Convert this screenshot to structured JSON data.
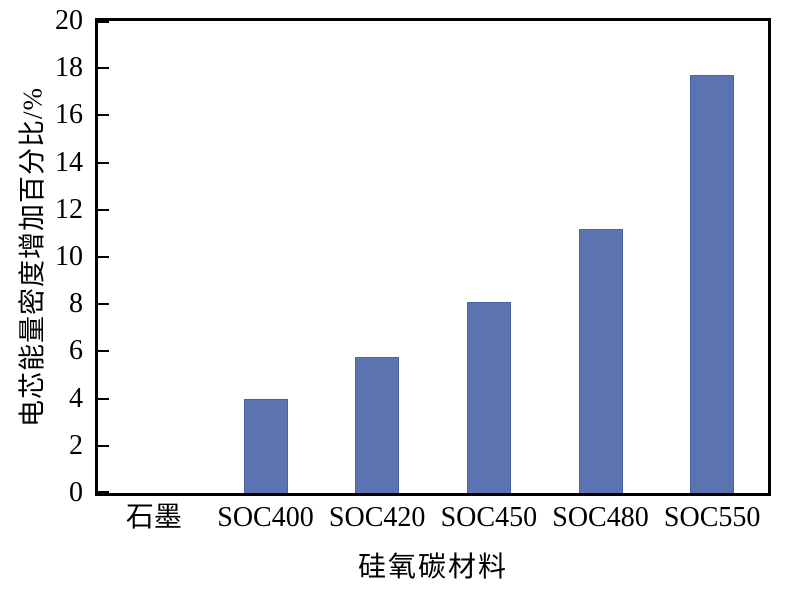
{
  "chart_data": {
    "type": "bar",
    "title": "",
    "categories": [
      "石墨",
      "SOC400",
      "SOC420",
      "SOC450",
      "SOC480",
      "SOC550"
    ],
    "values": [
      0,
      4.0,
      5.75,
      8.1,
      11.2,
      17.7
    ],
    "xlabel": "硅氧碳材料",
    "ylabel": "电芯能量密度增加百分比/%",
    "ylim": [
      0,
      20
    ],
    "ytick_step": 2,
    "ytick_labels": [
      "0",
      "2",
      "4",
      "6",
      "8",
      "10",
      "12",
      "14",
      "16",
      "18",
      "20"
    ],
    "bar_color": "#5b73b1",
    "bar_edge_color": "#4a62a0",
    "axis_color": "#000000",
    "grid": false,
    "legend_position": "none"
  }
}
